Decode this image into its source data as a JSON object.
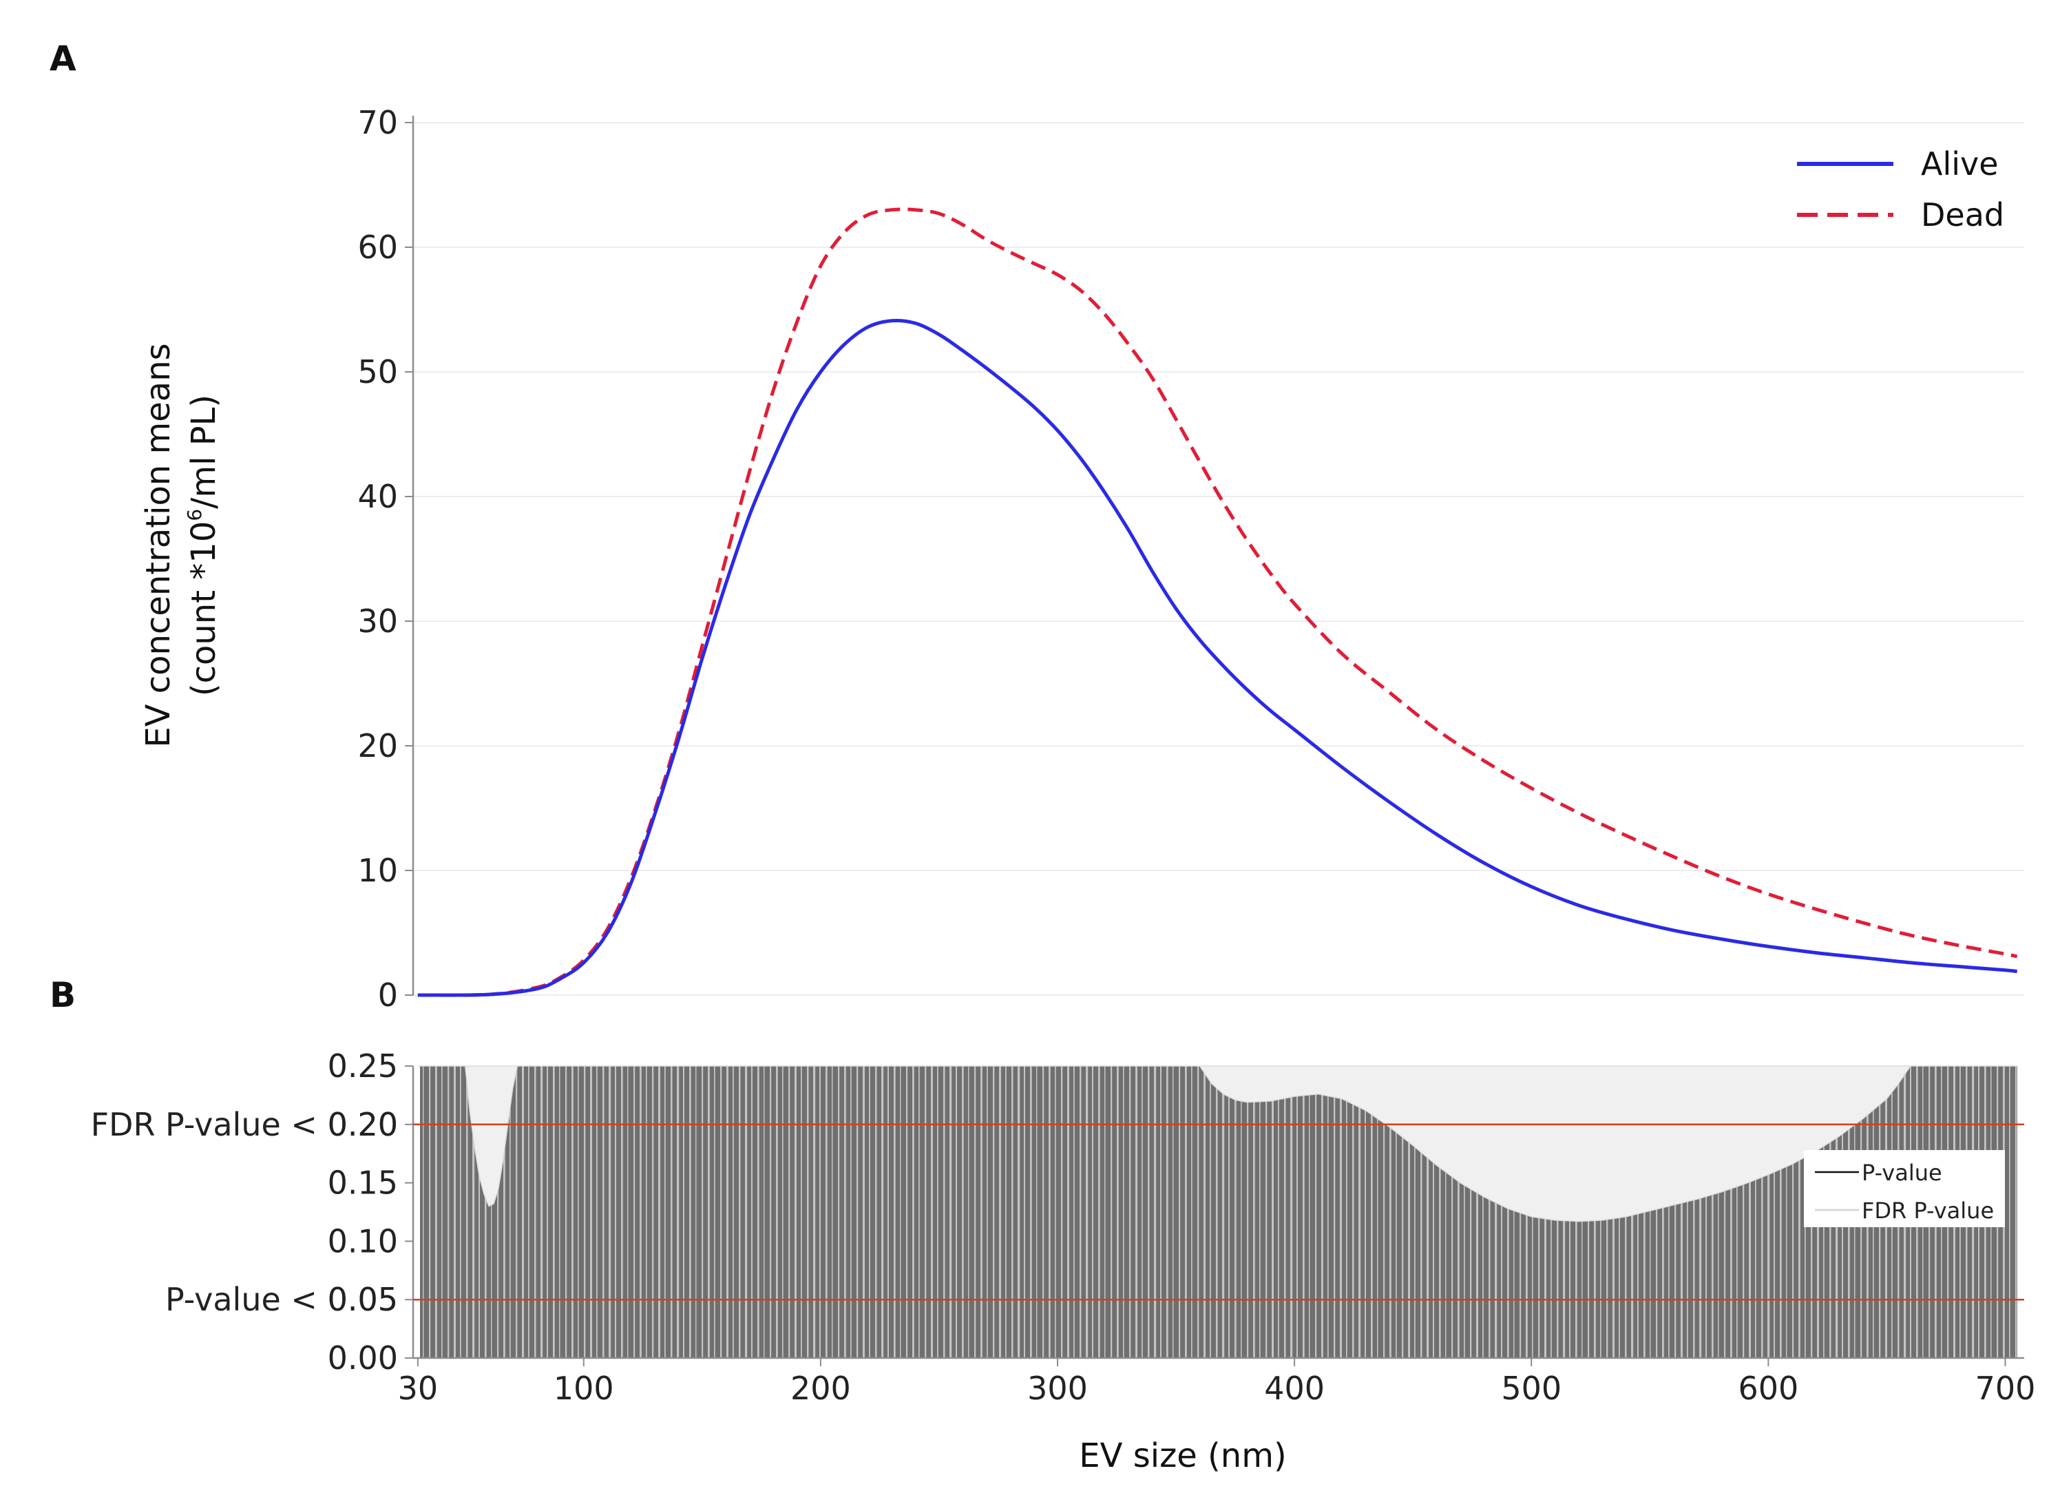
{
  "colors": {
    "alive": "#2a2ae6",
    "dead": "#e01e37",
    "threshold": "#d0421e",
    "bars": "#6f6f6f",
    "fdr_fill": "#f0f0f0",
    "grid": "#e6e6e6",
    "axis": "#8c8c8c"
  },
  "chart_data": [
    {
      "panel": "A",
      "type": "line",
      "xlabel": "EV size (nm)",
      "ylabel_line1": "EV concentration means",
      "ylabel_line2_pre": "(count *10",
      "ylabel_line2_sup": "6",
      "ylabel_line2_post": "/ml PL)",
      "xlim": [
        28,
        708
      ],
      "ylim": [
        0,
        70
      ],
      "yticks": [
        "0",
        "10",
        "20",
        "30",
        "40",
        "50",
        "60",
        "70"
      ],
      "legend": [
        "Alive",
        "Dead"
      ],
      "series": [
        {
          "name": "Alive",
          "style": "solid",
          "x": [
            30,
            60,
            80,
            90,
            100,
            110,
            120,
            130,
            140,
            150,
            160,
            170,
            180,
            190,
            200,
            210,
            220,
            230,
            240,
            250,
            260,
            270,
            280,
            290,
            300,
            310,
            320,
            330,
            340,
            350,
            360,
            370,
            380,
            390,
            400,
            420,
            440,
            460,
            480,
            500,
            520,
            540,
            560,
            580,
            600,
            620,
            640,
            660,
            680,
            700,
            705
          ],
          "y": [
            0,
            0.05,
            0.5,
            1.3,
            2.6,
            5,
            9,
            14.5,
            20.5,
            27,
            33,
            38.5,
            43,
            47,
            50,
            52.2,
            53.6,
            54.1,
            53.9,
            53,
            51.7,
            50.3,
            48.8,
            47.2,
            45.3,
            43,
            40.3,
            37.3,
            34,
            31,
            28.5,
            26.4,
            24.5,
            22.8,
            21.3,
            18.3,
            15.5,
            12.9,
            10.6,
            8.7,
            7.2,
            6.1,
            5.2,
            4.5,
            3.9,
            3.4,
            3,
            2.6,
            2.3,
            2,
            1.9
          ]
        },
        {
          "name": "Dead",
          "style": "dashed",
          "x": [
            30,
            60,
            80,
            90,
            100,
            110,
            120,
            130,
            140,
            150,
            160,
            170,
            180,
            190,
            200,
            210,
            220,
            230,
            240,
            250,
            260,
            270,
            280,
            290,
            300,
            310,
            320,
            330,
            340,
            350,
            360,
            370,
            380,
            390,
            400,
            420,
            440,
            460,
            480,
            500,
            520,
            540,
            560,
            580,
            600,
            620,
            640,
            660,
            680,
            700,
            705
          ],
          "y": [
            0,
            0.05,
            0.6,
            1.4,
            2.8,
            5.3,
            9.4,
            14.8,
            21,
            28,
            35,
            42,
            48.5,
            54,
            58.5,
            61.2,
            62.6,
            63,
            63,
            62.7,
            61.8,
            60.6,
            59.6,
            58.7,
            57.8,
            56.5,
            54.6,
            52.2,
            49.5,
            46.2,
            42.8,
            39.5,
            36.5,
            33.8,
            31.4,
            27.4,
            24.3,
            21.3,
            18.8,
            16.6,
            14.6,
            12.8,
            11.1,
            9.5,
            8.1,
            6.9,
            5.8,
            4.8,
            4,
            3.3,
            3.1
          ]
        }
      ]
    },
    {
      "panel": "B",
      "type": "area",
      "xlim": [
        28,
        708
      ],
      "xticks": [
        "30",
        "100",
        "200",
        "300",
        "400",
        "500",
        "600",
        "700"
      ],
      "ylim": [
        0,
        0.25
      ],
      "yticks": [
        "0.00",
        "0.05",
        "0.10",
        "0.15",
        "0.20",
        "0.25"
      ],
      "thresholds": [
        {
          "label": "FDR P-value < 0.20",
          "value": 0.2
        },
        {
          "label": "P-value < 0.05",
          "value": 0.05
        }
      ],
      "legend": [
        "P-value",
        "FDR P-value"
      ],
      "series": [
        {
          "name": "FDR P-value",
          "x": [
            30,
            45,
            50,
            52,
            54,
            56,
            58,
            60,
            62,
            64,
            66,
            68,
            70,
            72,
            75,
            100,
            200,
            300,
            355,
            360,
            365,
            370,
            375,
            380,
            390,
            400,
            410,
            420,
            430,
            440,
            450,
            460,
            470,
            480,
            490,
            500,
            510,
            520,
            530,
            540,
            550,
            560,
            570,
            580,
            590,
            600,
            610,
            620,
            630,
            640,
            650,
            655,
            660,
            700,
            705
          ],
          "y": [
            0.25,
            0.25,
            0.25,
            0.21,
            0.18,
            0.155,
            0.14,
            0.13,
            0.132,
            0.145,
            0.17,
            0.2,
            0.23,
            0.25,
            0.25,
            0.25,
            0.25,
            0.25,
            0.25,
            0.25,
            0.235,
            0.226,
            0.221,
            0.219,
            0.22,
            0.224,
            0.226,
            0.222,
            0.212,
            0.198,
            0.182,
            0.165,
            0.15,
            0.138,
            0.128,
            0.121,
            0.118,
            0.117,
            0.118,
            0.121,
            0.126,
            0.131,
            0.136,
            0.142,
            0.149,
            0.157,
            0.166,
            0.177,
            0.19,
            0.205,
            0.222,
            0.235,
            0.25,
            0.25,
            0.25
          ]
        }
      ]
    }
  ]
}
